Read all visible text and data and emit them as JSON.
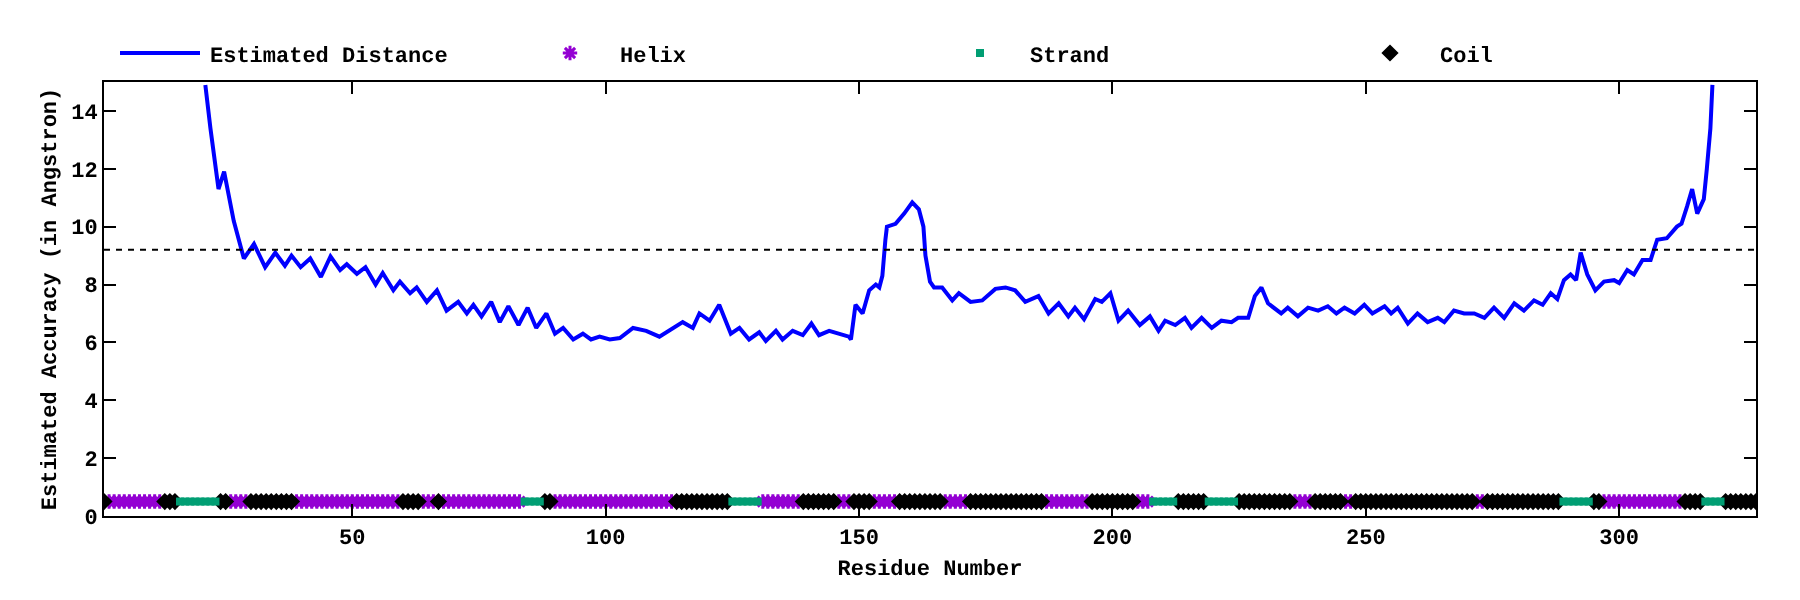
{
  "chart_data": {
    "type": "line",
    "xlabel": "Residue Number",
    "ylabel": "Estimated Accuracy (in Angstron)",
    "xlim": [
      1,
      327
    ],
    "ylim": [
      0,
      15
    ],
    "xticks": [
      50,
      100,
      150,
      200,
      250,
      300
    ],
    "yticks": [
      0,
      2,
      4,
      6,
      8,
      10,
      12,
      14
    ],
    "legend": "top",
    "ref_lines": [
      {
        "axis": "y",
        "value": 9.2,
        "color": "#000000",
        "line_style": "dotted"
      }
    ],
    "series": [
      {
        "name": "Estimated Distance",
        "color": "#0000ff",
        "marker": "none",
        "line_style": "solid",
        "x": [
          21,
          22,
          23.6,
          24.7,
          26.6,
          28.6,
          30.6,
          32.8,
          34.8,
          36.7,
          38,
          39.8,
          41.7,
          43.8,
          45.7,
          47.6,
          48.9,
          50.9,
          52.6,
          54.6,
          56,
          58.1,
          59.4,
          61.4,
          62.7,
          64.7,
          66.7,
          68.6,
          70.9,
          72.6,
          73.9,
          75.5,
          77.4,
          79.1,
          80.8,
          82.8,
          84.6,
          86.3,
          88.3,
          90,
          91.6,
          93.6,
          95.5,
          97.1,
          98.8,
          100.8,
          102.8,
          105.4,
          108,
          110.6,
          115.2,
          117.2,
          118.5,
          120.5,
          122.4,
          124.7,
          126.4,
          128.3,
          130.3,
          131.6,
          133.6,
          134.9,
          136.9,
          138.9,
          140.6,
          142.1,
          144.1,
          148,
          148.4,
          149.3,
          150.7,
          152,
          153.3,
          154,
          154.6,
          155.2,
          155.5,
          157.2,
          158.9,
          160.5,
          161.8,
          162.7,
          163.1,
          164,
          164.8,
          166.4,
          168.4,
          169.7,
          172,
          174.3,
          176.9,
          178.9,
          180.8,
          182.8,
          185.4,
          187.4,
          189.4,
          191.3,
          192.6,
          194.4,
          196.6,
          197.9,
          199.6,
          201.2,
          203.1,
          205.4,
          207.4,
          209.1,
          210.4,
          212.4,
          214.3,
          215.6,
          217.6,
          219.6,
          221.5,
          223.5,
          224.8,
          226.8,
          228.1,
          229.4,
          230.7,
          233.3,
          234.6,
          236.6,
          238.6,
          240.6,
          242.5,
          244.2,
          245.8,
          247.8,
          249.7,
          251.3,
          253.7,
          255,
          256.3,
          258.3,
          260.2,
          262.2,
          264.2,
          265.5,
          267.4,
          269.4,
          271.4,
          273.4,
          275.3,
          277.3,
          279.3,
          281.2,
          283.2,
          284.9,
          286.5,
          287.8,
          289.1,
          290.4,
          291.5,
          292.4,
          293.7,
          295.3,
          297,
          299,
          300,
          301.6,
          302.9,
          304.6,
          306.2,
          307.5,
          309.4,
          311.4,
          312.3,
          313.4,
          314.4,
          315.4,
          316.7,
          317.3,
          318,
          318.4
        ],
        "values": [
          14.9,
          13.4,
          11.3,
          11.9,
          10.2,
          8.9,
          9.4,
          8.6,
          9.1,
          8.65,
          9.0,
          8.6,
          8.9,
          8.26,
          8.97,
          8.5,
          8.7,
          8.37,
          8.6,
          8.0,
          8.4,
          7.8,
          8.1,
          7.7,
          7.9,
          7.4,
          7.8,
          7.1,
          7.4,
          7.0,
          7.3,
          6.9,
          7.4,
          6.7,
          7.25,
          6.6,
          7.2,
          6.5,
          7.0,
          6.3,
          6.5,
          6.1,
          6.3,
          6.1,
          6.2,
          6.1,
          6.15,
          6.5,
          6.4,
          6.2,
          6.7,
          6.5,
          7.0,
          6.75,
          7.3,
          6.3,
          6.5,
          6.1,
          6.35,
          6.05,
          6.4,
          6.1,
          6.4,
          6.25,
          6.65,
          6.25,
          6.4,
          6.2,
          6.1,
          7.3,
          7.0,
          7.8,
          8.0,
          7.9,
          8.3,
          9.55,
          10.0,
          10.1,
          10.45,
          10.84,
          10.6,
          10.0,
          9.0,
          8.1,
          7.9,
          7.9,
          7.45,
          7.7,
          7.4,
          7.45,
          7.85,
          7.9,
          7.8,
          7.4,
          7.6,
          7.0,
          7.35,
          6.9,
          7.2,
          6.8,
          7.5,
          7.4,
          7.7,
          6.75,
          7.1,
          6.6,
          6.9,
          6.4,
          6.75,
          6.6,
          6.85,
          6.5,
          6.85,
          6.5,
          6.75,
          6.7,
          6.85,
          6.85,
          7.6,
          7.9,
          7.35,
          7.0,
          7.2,
          6.9,
          7.2,
          7.1,
          7.25,
          7.0,
          7.2,
          7.0,
          7.3,
          7.0,
          7.25,
          7.0,
          7.2,
          6.65,
          7.0,
          6.7,
          6.85,
          6.7,
          7.1,
          7.0,
          7.0,
          6.85,
          7.2,
          6.85,
          7.35,
          7.1,
          7.45,
          7.3,
          7.7,
          7.5,
          8.15,
          8.35,
          8.15,
          9.1,
          8.35,
          7.8,
          8.1,
          8.15,
          8.05,
          8.5,
          8.35,
          8.85,
          8.85,
          9.55,
          9.6,
          10.0,
          10.1,
          10.7,
          11.3,
          10.45,
          10.95,
          12.0,
          13.4,
          14.9
        ]
      },
      {
        "name": "Helix",
        "type": "scatter",
        "color": "#9400d3",
        "marker": "cross",
        "x": [
          2,
          3,
          4,
          5,
          6,
          7,
          8,
          9,
          10,
          11,
          12,
          26,
          27,
          28,
          29,
          39,
          40,
          41,
          42,
          43,
          44,
          45,
          46,
          47,
          48,
          49,
          50,
          51,
          52,
          53,
          54,
          55,
          56,
          57,
          58,
          59,
          64,
          65,
          66,
          68,
          69,
          70,
          71,
          72,
          73,
          74,
          75,
          76,
          77,
          78,
          79,
          80,
          81,
          82,
          83,
          90,
          91,
          92,
          93,
          94,
          95,
          96,
          97,
          98,
          99,
          100,
          101,
          102,
          103,
          104,
          105,
          106,
          107,
          108,
          109,
          110,
          111,
          112,
          113,
          131,
          132,
          133,
          134,
          135,
          136,
          137,
          138,
          146,
          147,
          148,
          153,
          154,
          155,
          156,
          157,
          167,
          168,
          169,
          170,
          171,
          187,
          188,
          189,
          190,
          191,
          192,
          193,
          194,
          195,
          205,
          206,
          207,
          236,
          237,
          238,
          239,
          246,
          247,
          272,
          273,
          297,
          298,
          299,
          300,
          301,
          302,
          303,
          304,
          305,
          306,
          307,
          308,
          309,
          310,
          311,
          312
        ],
        "values": [
          0.5,
          0.5,
          0.5,
          0.5,
          0.5,
          0.5,
          0.5,
          0.5,
          0.5,
          0.5,
          0.5,
          0.5,
          0.5,
          0.5,
          0.5,
          0.5,
          0.5,
          0.5,
          0.5,
          0.5,
          0.5,
          0.5,
          0.5,
          0.5,
          0.5,
          0.5,
          0.5,
          0.5,
          0.5,
          0.5,
          0.5,
          0.5,
          0.5,
          0.5,
          0.5,
          0.5,
          0.5,
          0.5,
          0.5,
          0.5,
          0.5,
          0.5,
          0.5,
          0.5,
          0.5,
          0.5,
          0.5,
          0.5,
          0.5,
          0.5,
          0.5,
          0.5,
          0.5,
          0.5,
          0.5,
          0.5,
          0.5,
          0.5,
          0.5,
          0.5,
          0.5,
          0.5,
          0.5,
          0.5,
          0.5,
          0.5,
          0.5,
          0.5,
          0.5,
          0.5,
          0.5,
          0.5,
          0.5,
          0.5,
          0.5,
          0.5,
          0.5,
          0.5,
          0.5,
          0.5,
          0.5,
          0.5,
          0.5,
          0.5,
          0.5,
          0.5,
          0.5,
          0.5,
          0.5,
          0.5,
          0.5,
          0.5,
          0.5,
          0.5,
          0.5,
          0.5,
          0.5,
          0.5,
          0.5,
          0.5,
          0.5,
          0.5,
          0.5,
          0.5,
          0.5,
          0.5,
          0.5,
          0.5,
          0.5,
          0.5,
          0.5,
          0.5,
          0.5,
          0.5,
          0.5,
          0.5,
          0.5,
          0.5,
          0.5,
          0.5,
          0.5,
          0.5,
          0.5,
          0.5,
          0.5,
          0.5,
          0.5,
          0.5,
          0.5,
          0.5,
          0.5,
          0.5,
          0.5,
          0.5,
          0.5,
          0.5
        ]
      },
      {
        "name": "Strand",
        "type": "scatter",
        "color": "#009e73",
        "marker": "square",
        "x": [
          16,
          17,
          18,
          19,
          20,
          21,
          22,
          23,
          84,
          85,
          86,
          87,
          125,
          126,
          127,
          128,
          129,
          130,
          208,
          209,
          210,
          211,
          212,
          219,
          220,
          221,
          222,
          223,
          224,
          289,
          290,
          291,
          292,
          293,
          294,
          317,
          318,
          319,
          320
        ],
        "values": [
          0.5,
          0.5,
          0.5,
          0.5,
          0.5,
          0.5,
          0.5,
          0.5,
          0.5,
          0.5,
          0.5,
          0.5,
          0.5,
          0.5,
          0.5,
          0.5,
          0.5,
          0.5,
          0.5,
          0.5,
          0.5,
          0.5,
          0.5,
          0.5,
          0.5,
          0.5,
          0.5,
          0.5,
          0.5,
          0.5,
          0.5,
          0.5,
          0.5,
          0.5,
          0.5,
          0.5,
          0.5,
          0.5,
          0.5
        ]
      },
      {
        "name": "Coil",
        "type": "scatter",
        "color": "#000000",
        "marker": "diamond",
        "x": [
          1,
          13,
          14,
          15,
          24,
          25,
          30,
          31,
          32,
          33,
          34,
          35,
          36,
          37,
          38,
          60,
          61,
          62,
          63,
          67,
          88,
          89,
          114,
          115,
          116,
          117,
          118,
          119,
          120,
          121,
          122,
          123,
          124,
          139,
          140,
          141,
          142,
          143,
          144,
          145,
          149,
          150,
          151,
          152,
          158,
          159,
          160,
          161,
          162,
          163,
          164,
          165,
          166,
          172,
          173,
          174,
          175,
          176,
          177,
          178,
          179,
          180,
          181,
          182,
          183,
          184,
          185,
          186,
          196,
          197,
          198,
          199,
          200,
          201,
          202,
          203,
          204,
          213,
          214,
          215,
          216,
          217,
          218,
          225,
          226,
          227,
          228,
          229,
          230,
          231,
          232,
          233,
          234,
          235,
          240,
          241,
          242,
          243,
          244,
          245,
          248,
          249,
          250,
          251,
          252,
          253,
          254,
          255,
          256,
          257,
          258,
          259,
          260,
          261,
          262,
          263,
          264,
          265,
          266,
          267,
          268,
          269,
          270,
          271,
          274,
          275,
          276,
          277,
          278,
          279,
          280,
          281,
          282,
          283,
          284,
          285,
          286,
          287,
          288,
          295,
          296,
          313,
          314,
          315,
          316,
          321,
          322,
          323,
          324,
          325,
          326,
          327
        ],
        "values": [
          0.5,
          0.5,
          0.5,
          0.5,
          0.5,
          0.5,
          0.5,
          0.5,
          0.5,
          0.5,
          0.5,
          0.5,
          0.5,
          0.5,
          0.5,
          0.5,
          0.5,
          0.5,
          0.5,
          0.5,
          0.5,
          0.5,
          0.5,
          0.5,
          0.5,
          0.5,
          0.5,
          0.5,
          0.5,
          0.5,
          0.5,
          0.5,
          0.5,
          0.5,
          0.5,
          0.5,
          0.5,
          0.5,
          0.5,
          0.5,
          0.5,
          0.5,
          0.5,
          0.5,
          0.5,
          0.5,
          0.5,
          0.5,
          0.5,
          0.5,
          0.5,
          0.5,
          0.5,
          0.5,
          0.5,
          0.5,
          0.5,
          0.5,
          0.5,
          0.5,
          0.5,
          0.5,
          0.5,
          0.5,
          0.5,
          0.5,
          0.5,
          0.5,
          0.5,
          0.5,
          0.5,
          0.5,
          0.5,
          0.5,
          0.5,
          0.5,
          0.5,
          0.5,
          0.5,
          0.5,
          0.5,
          0.5,
          0.5,
          0.5,
          0.5,
          0.5,
          0.5,
          0.5,
          0.5,
          0.5,
          0.5,
          0.5,
          0.5,
          0.5,
          0.5,
          0.5,
          0.5,
          0.5,
          0.5,
          0.5,
          0.5,
          0.5,
          0.5,
          0.5,
          0.5,
          0.5,
          0.5,
          0.5,
          0.5,
          0.5,
          0.5,
          0.5,
          0.5,
          0.5,
          0.5,
          0.5,
          0.5,
          0.5,
          0.5,
          0.5,
          0.5,
          0.5,
          0.5,
          0.5,
          0.5,
          0.5,
          0.5,
          0.5,
          0.5,
          0.5,
          0.5,
          0.5,
          0.5,
          0.5,
          0.5,
          0.5,
          0.5,
          0.5,
          0.5,
          0.5,
          0.5,
          0.5,
          0.5,
          0.5,
          0.5,
          0.5,
          0.5,
          0.5,
          0.5,
          0.5,
          0.5,
          0.5
        ]
      }
    ]
  }
}
